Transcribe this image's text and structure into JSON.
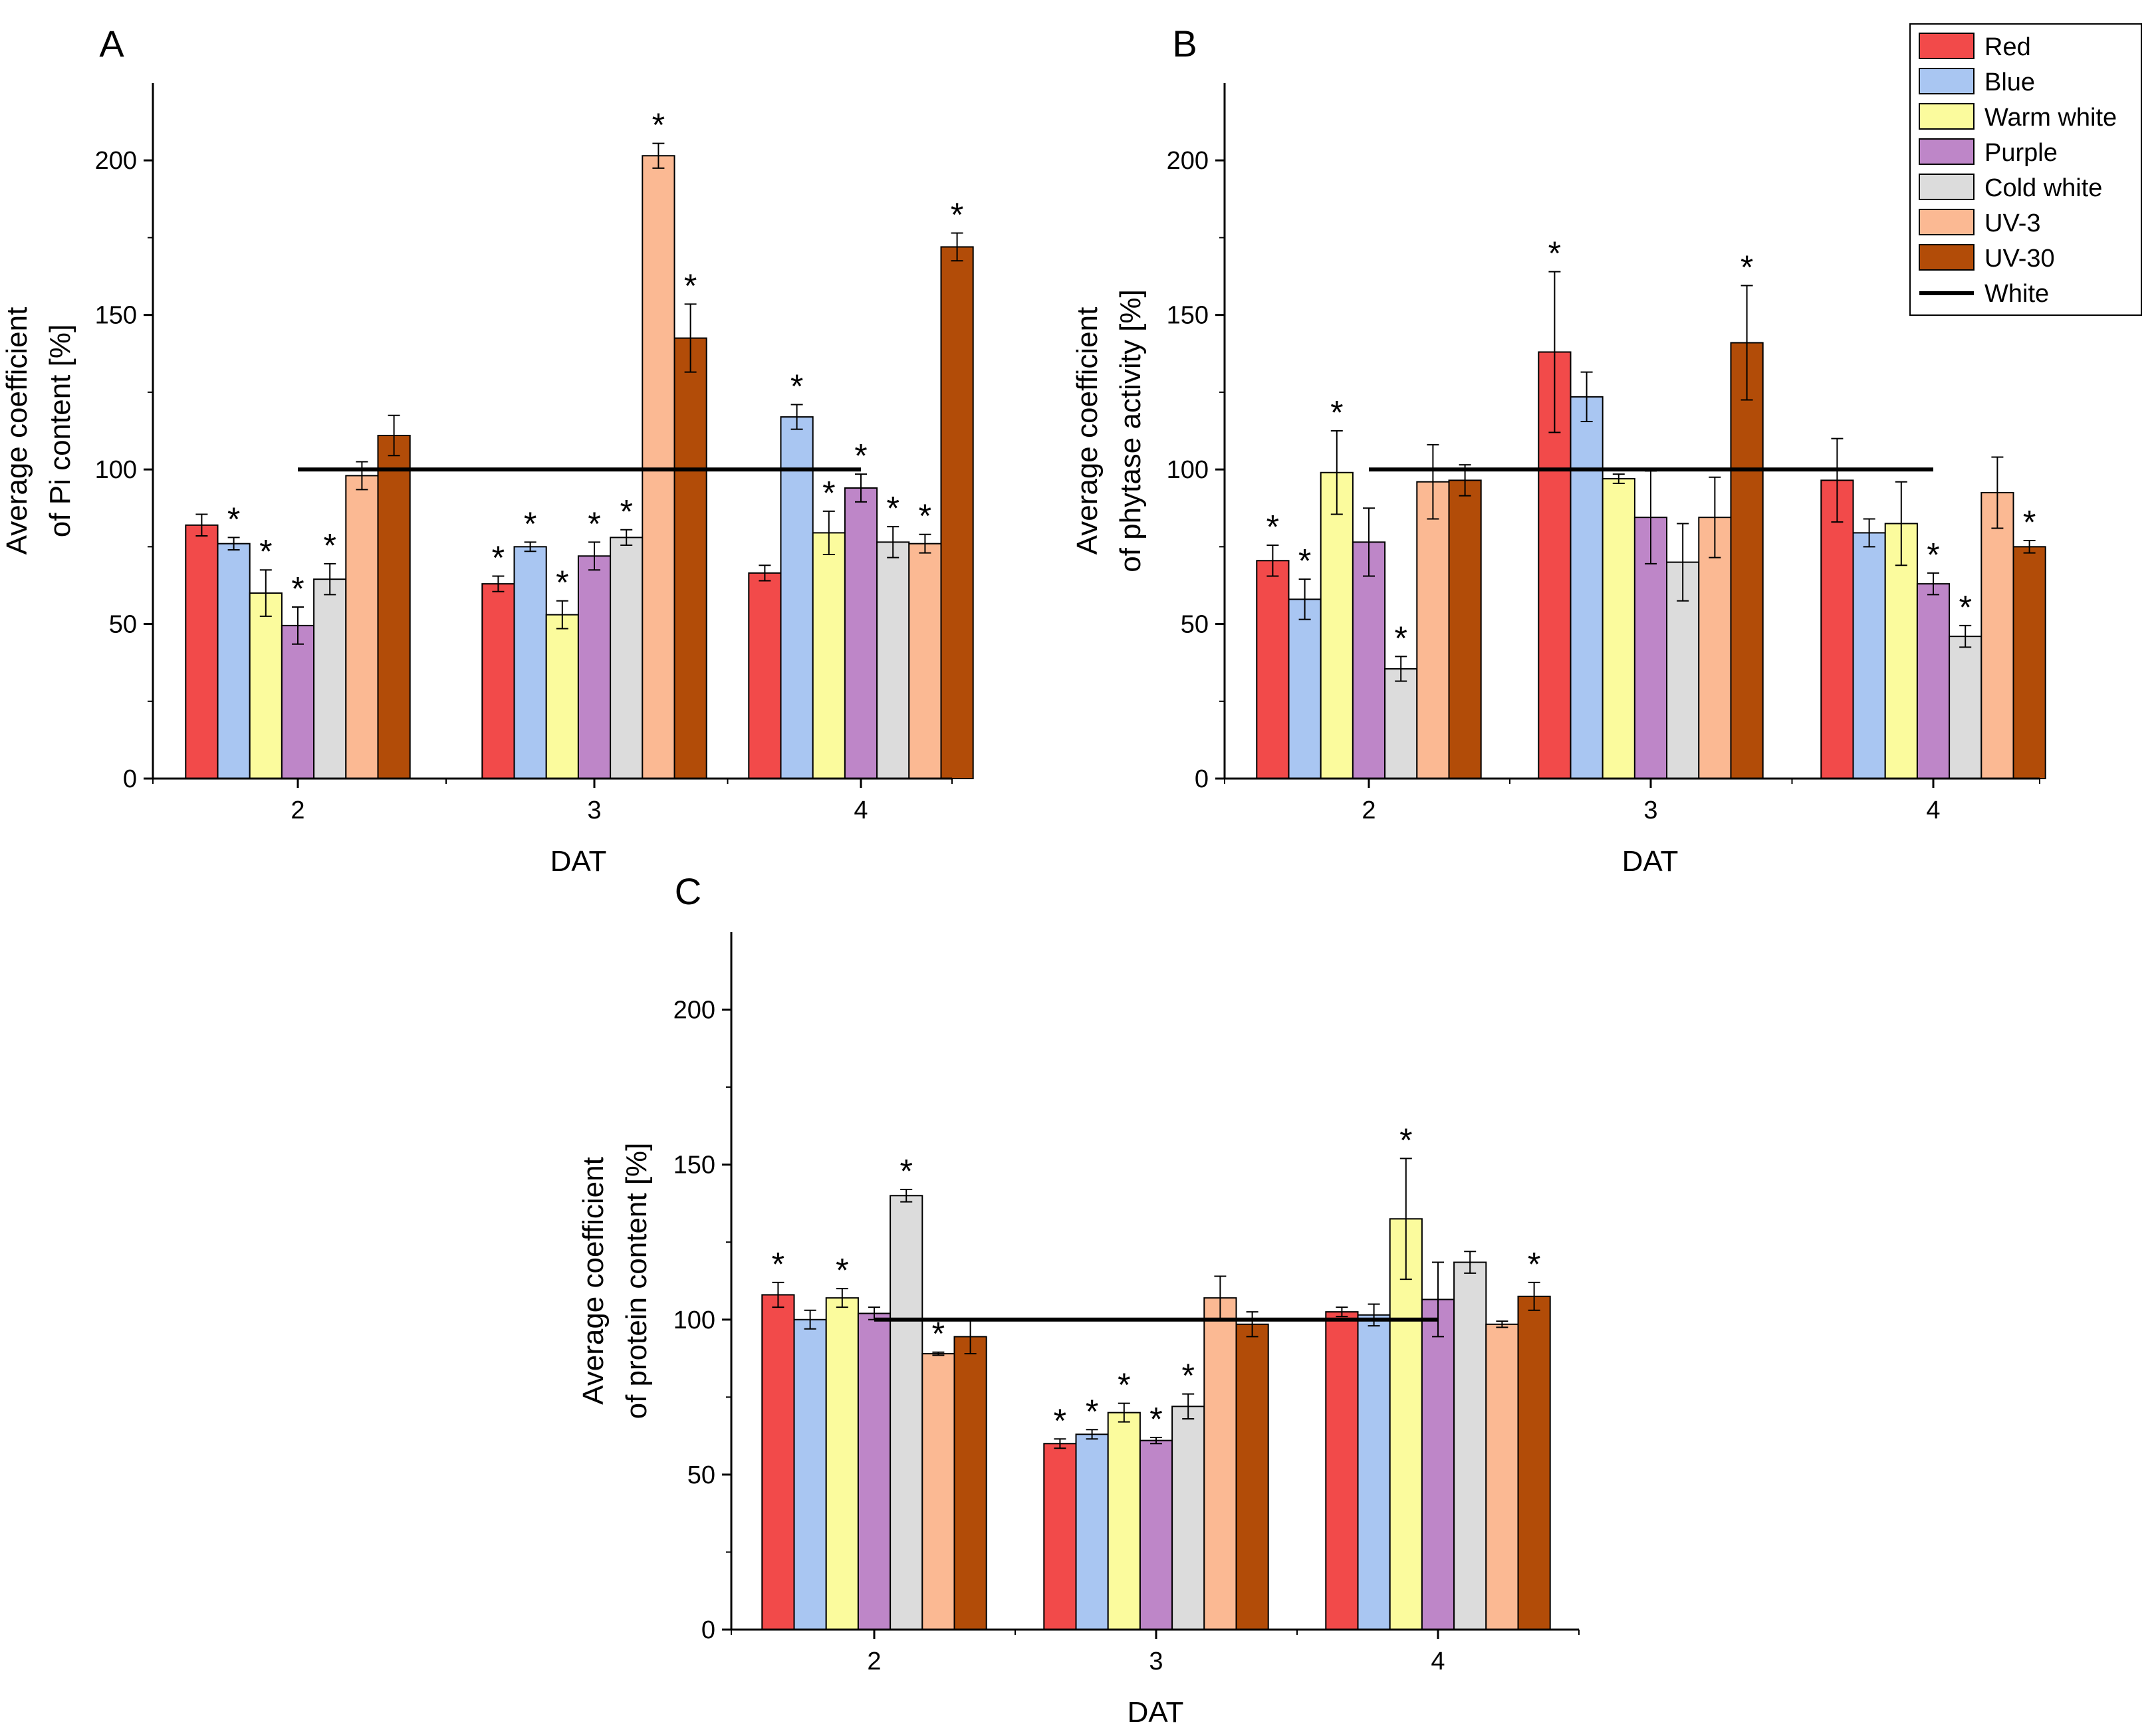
{
  "colors": {
    "Red": "#f24a4a",
    "Blue": "#a9c6f2",
    "Warm white": "#fbfb9d",
    "Purple": "#be86c8",
    "Cold white": "#dcdcdc",
    "UV-3": "#fbb993",
    "UV-30": "#b24c08",
    "White": "#000000"
  },
  "legend": {
    "entries": [
      "Red",
      "Blue",
      "Warm white",
      "Purple",
      "Cold white",
      "UV-3",
      "UV-30"
    ],
    "line_entry": "White",
    "placement": "top-right"
  },
  "chart_data": [
    {
      "type": "bar",
      "panel": "A",
      "xlabel": "DAT",
      "ylabel": [
        "Average coefficient",
        "of  Pi content [%]"
      ],
      "categories": [
        "2",
        "3",
        "4"
      ],
      "ylim": [
        0,
        225
      ],
      "yticks": [
        0,
        50,
        100,
        150,
        200
      ],
      "reference_line": {
        "name": "White",
        "value": 100,
        "from_category": "2",
        "to_category": "4"
      },
      "series": [
        {
          "name": "Red",
          "values": [
            82,
            63,
            66.5
          ],
          "errors": [
            3.5,
            2.5,
            2.5
          ],
          "significant": [
            false,
            true,
            false
          ]
        },
        {
          "name": "Blue",
          "values": [
            76,
            75,
            117
          ],
          "errors": [
            2,
            1.5,
            4
          ],
          "significant": [
            true,
            true,
            true
          ]
        },
        {
          "name": "Warm white",
          "values": [
            60,
            53,
            79.5
          ],
          "errors": [
            7.5,
            4.5,
            7
          ],
          "significant": [
            true,
            true,
            true
          ]
        },
        {
          "name": "Purple",
          "values": [
            49.5,
            72,
            94
          ],
          "errors": [
            6,
            4.5,
            4.5
          ],
          "significant": [
            true,
            true,
            true
          ]
        },
        {
          "name": "Cold white",
          "values": [
            64.5,
            78,
            76.5
          ],
          "errors": [
            5,
            2.5,
            5
          ],
          "significant": [
            true,
            true,
            true
          ]
        },
        {
          "name": "UV-3",
          "values": [
            98,
            201.5,
            76
          ],
          "errors": [
            4.5,
            4,
            3
          ],
          "significant": [
            false,
            true,
            true
          ]
        },
        {
          "name": "UV-30",
          "values": [
            111,
            142.5,
            172
          ],
          "errors": [
            6.5,
            11,
            4.5
          ],
          "significant": [
            false,
            true,
            true
          ]
        }
      ]
    },
    {
      "type": "bar",
      "panel": "B",
      "xlabel": "DAT",
      "ylabel": [
        "Average coefficient",
        "of  phytase activity [%]"
      ],
      "categories": [
        "2",
        "3",
        "4"
      ],
      "ylim": [
        0,
        225
      ],
      "yticks": [
        0,
        50,
        100,
        150,
        200
      ],
      "reference_line": {
        "name": "White",
        "value": 100,
        "from_category": "2",
        "to_category": "4"
      },
      "series": [
        {
          "name": "Red",
          "values": [
            70.5,
            138,
            96.5
          ],
          "errors": [
            5,
            26,
            13.5
          ],
          "significant": [
            true,
            true,
            false
          ]
        },
        {
          "name": "Blue",
          "values": [
            58,
            123.5,
            79.5
          ],
          "errors": [
            6.5,
            8,
            4.5
          ],
          "significant": [
            true,
            false,
            false
          ]
        },
        {
          "name": "Warm white",
          "values": [
            99,
            97,
            82.5
          ],
          "errors": [
            13.5,
            1.5,
            13.5
          ],
          "significant": [
            true,
            false,
            false
          ]
        },
        {
          "name": "Purple",
          "values": [
            76.5,
            84.5,
            63
          ],
          "errors": [
            11,
            15,
            3.5
          ],
          "significant": [
            false,
            false,
            true
          ]
        },
        {
          "name": "Cold white",
          "values": [
            35.5,
            70,
            46
          ],
          "errors": [
            4,
            12.5,
            3.5
          ],
          "significant": [
            true,
            false,
            true
          ]
        },
        {
          "name": "UV-3",
          "values": [
            96,
            84.5,
            92.5
          ],
          "errors": [
            12,
            13,
            11.5
          ],
          "significant": [
            false,
            false,
            false
          ]
        },
        {
          "name": "UV-30",
          "values": [
            96.5,
            141,
            75
          ],
          "errors": [
            5,
            18.5,
            2
          ],
          "significant": [
            false,
            true,
            true
          ]
        }
      ]
    },
    {
      "type": "bar",
      "panel": "C",
      "xlabel": "DAT",
      "ylabel": [
        "Average coefficient",
        "of protein content [%]"
      ],
      "categories": [
        "2",
        "3",
        "4"
      ],
      "ylim": [
        0,
        225
      ],
      "yticks": [
        0,
        50,
        100,
        150,
        200
      ],
      "reference_line": {
        "name": "White",
        "value": 100,
        "from_category": "2",
        "to_category": "4"
      },
      "series": [
        {
          "name": "Red",
          "values": [
            108,
            60,
            102.5
          ],
          "errors": [
            4,
            1.5,
            1.5
          ],
          "significant": [
            true,
            true,
            false
          ]
        },
        {
          "name": "Blue",
          "values": [
            100,
            63,
            101.5
          ],
          "errors": [
            3,
            1.5,
            3.5
          ],
          "significant": [
            false,
            true,
            false
          ]
        },
        {
          "name": "Warm white",
          "values": [
            107,
            70,
            132.5
          ],
          "errors": [
            3,
            3,
            19.5
          ],
          "significant": [
            true,
            true,
            true
          ]
        },
        {
          "name": "Purple",
          "values": [
            102,
            61,
            106.5
          ],
          "errors": [
            2,
            1,
            12
          ],
          "significant": [
            false,
            true,
            false
          ]
        },
        {
          "name": "Cold white",
          "values": [
            140,
            72,
            118.5
          ],
          "errors": [
            2,
            4,
            3.5
          ],
          "significant": [
            true,
            true,
            false
          ]
        },
        {
          "name": "UV-3",
          "values": [
            89,
            107,
            98.5
          ],
          "errors": [
            0.5,
            7,
            1
          ],
          "significant": [
            true,
            false,
            false
          ]
        },
        {
          "name": "UV-30",
          "values": [
            94.5,
            98.5,
            107.5
          ],
          "errors": [
            5.5,
            4,
            4.5
          ],
          "significant": [
            false,
            false,
            true
          ]
        }
      ]
    }
  ]
}
